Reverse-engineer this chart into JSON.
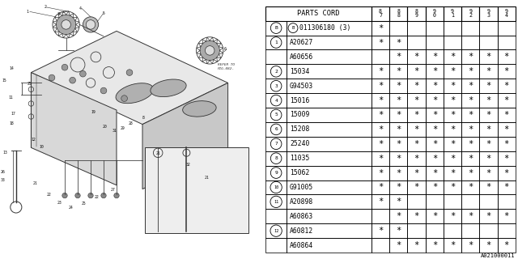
{
  "watermark": "A021000011",
  "bg_color": "#ffffff",
  "table": {
    "col_header": [
      "PARTS CORD",
      "8\n7",
      "8\n8",
      "8\n9",
      "9\n0",
      "9\n1",
      "9\n2",
      "9\n3",
      "9\n4"
    ],
    "rows": [
      {
        "ref": "B",
        "part": "011306180 (3)",
        "stars": [
          1,
          0,
          0,
          0,
          0,
          0,
          0,
          0
        ],
        "circled": true,
        "has_B": true
      },
      {
        "ref": "1",
        "part": "A20627",
        "stars": [
          1,
          1,
          0,
          0,
          0,
          0,
          0,
          0
        ],
        "circled": true,
        "has_B": false
      },
      {
        "ref": "",
        "part": "A60656",
        "stars": [
          0,
          1,
          1,
          1,
          1,
          1,
          1,
          1
        ],
        "circled": false,
        "has_B": false
      },
      {
        "ref": "2",
        "part": "15034",
        "stars": [
          1,
          1,
          1,
          1,
          1,
          1,
          1,
          1
        ],
        "circled": true,
        "has_B": false
      },
      {
        "ref": "3",
        "part": "G94503",
        "stars": [
          1,
          1,
          1,
          1,
          1,
          1,
          1,
          1
        ],
        "circled": true,
        "has_B": false
      },
      {
        "ref": "4",
        "part": "15016",
        "stars": [
          1,
          1,
          1,
          1,
          1,
          1,
          1,
          1
        ],
        "circled": true,
        "has_B": false
      },
      {
        "ref": "5",
        "part": "15009",
        "stars": [
          1,
          1,
          1,
          1,
          1,
          1,
          1,
          1
        ],
        "circled": true,
        "has_B": false
      },
      {
        "ref": "6",
        "part": "15208",
        "stars": [
          1,
          1,
          1,
          1,
          1,
          1,
          1,
          1
        ],
        "circled": true,
        "has_B": false
      },
      {
        "ref": "7",
        "part": "25240",
        "stars": [
          1,
          1,
          1,
          1,
          1,
          1,
          1,
          1
        ],
        "circled": true,
        "has_B": false
      },
      {
        "ref": "8",
        "part": "11035",
        "stars": [
          1,
          1,
          1,
          1,
          1,
          1,
          1,
          1
        ],
        "circled": true,
        "has_B": false
      },
      {
        "ref": "9",
        "part": "15062",
        "stars": [
          1,
          1,
          1,
          1,
          1,
          1,
          1,
          1
        ],
        "circled": true,
        "has_B": false
      },
      {
        "ref": "10",
        "part": "G91005",
        "stars": [
          1,
          1,
          1,
          1,
          1,
          1,
          1,
          1
        ],
        "circled": true,
        "has_B": false
      },
      {
        "ref": "11",
        "part": "A20898",
        "stars": [
          1,
          1,
          0,
          0,
          0,
          0,
          0,
          0
        ],
        "circled": true,
        "has_B": false
      },
      {
        "ref": "",
        "part": "A60863",
        "stars": [
          0,
          1,
          1,
          1,
          1,
          1,
          1,
          1
        ],
        "circled": false,
        "has_B": false
      },
      {
        "ref": "12",
        "part": "A60812",
        "stars": [
          1,
          1,
          0,
          0,
          0,
          0,
          0,
          0
        ],
        "circled": true,
        "has_B": false
      },
      {
        "ref": "",
        "part": "A60864",
        "stars": [
          0,
          1,
          1,
          1,
          1,
          1,
          1,
          1
        ],
        "circled": false,
        "has_B": false
      }
    ]
  },
  "diagram": {
    "callouts": [
      [
        1.05,
        9.55,
        "1"
      ],
      [
        1.75,
        9.72,
        "2"
      ],
      [
        2.25,
        9.45,
        "3"
      ],
      [
        3.1,
        9.68,
        "4"
      ],
      [
        4.0,
        9.5,
        "5"
      ],
      [
        8.7,
        8.1,
        "6"
      ],
      [
        0.45,
        7.35,
        "14"
      ],
      [
        0.18,
        6.88,
        "15"
      ],
      [
        1.15,
        6.78,
        "25"
      ],
      [
        0.42,
        6.25,
        "11"
      ],
      [
        0.5,
        5.62,
        "17"
      ],
      [
        0.45,
        5.22,
        "18"
      ],
      [
        0.2,
        4.1,
        "13"
      ],
      [
        1.3,
        4.6,
        "12"
      ],
      [
        1.6,
        4.32,
        "10"
      ],
      [
        0.1,
        3.35,
        "26"
      ],
      [
        0.1,
        3.05,
        "33"
      ],
      [
        1.35,
        2.92,
        "21"
      ],
      [
        1.9,
        2.5,
        "22"
      ],
      [
        2.3,
        2.18,
        "23"
      ],
      [
        2.75,
        1.98,
        "24"
      ],
      [
        3.22,
        2.15,
        "25"
      ],
      [
        3.72,
        2.4,
        "22"
      ],
      [
        4.35,
        2.68,
        "27"
      ],
      [
        3.6,
        5.68,
        "19"
      ],
      [
        4.05,
        5.1,
        "20"
      ],
      [
        4.42,
        4.95,
        "31"
      ],
      [
        4.72,
        5.05,
        "29"
      ],
      [
        5.05,
        5.22,
        "28"
      ],
      [
        5.55,
        5.45,
        "8"
      ],
      [
        6.1,
        4.08,
        "21"
      ],
      [
        7.28,
        3.65,
        "32"
      ],
      [
        8.0,
        3.15,
        "21"
      ]
    ]
  }
}
